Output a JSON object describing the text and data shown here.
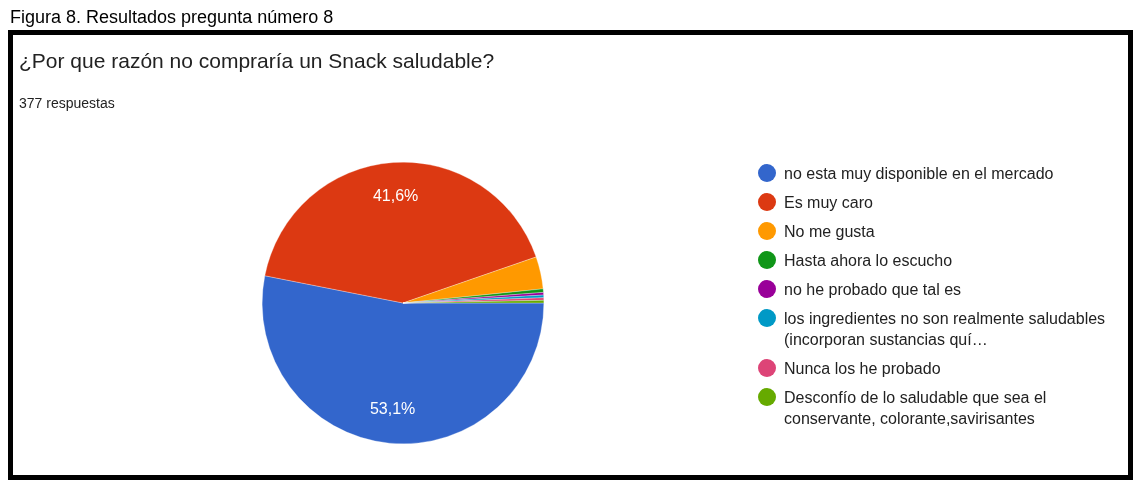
{
  "chart_data": {
    "type": "pie",
    "title": "¿Por que razón no compraría un Snack saludable?",
    "subtitle": "377 respuestas",
    "annotations": [
      "Figura 8. Resultados pregunta número 8"
    ],
    "categories": [
      "no esta muy disponible en el mercado",
      "Es muy caro",
      "No me gusta",
      "Hasta ahora lo escucho",
      "no he probado que tal es",
      "los ingredientes no son realmente saludables (incorporan sustancias quí…",
      "Nunca los he probado",
      "Desconfío de lo saludable que sea el conservante, colorante,savirisantes"
    ],
    "values": [
      53.1,
      41.6,
      3.7,
      0.4,
      0.3,
      0.3,
      0.3,
      0.3
    ],
    "colors": [
      "#3366cc",
      "#dc3912",
      "#ff9900",
      "#109618",
      "#990099",
      "#0099c6",
      "#dd4477",
      "#66aa00"
    ],
    "value_labels": [
      "53,1%",
      "41,6%",
      null,
      null,
      null,
      null,
      null,
      null
    ],
    "legend": "right"
  }
}
